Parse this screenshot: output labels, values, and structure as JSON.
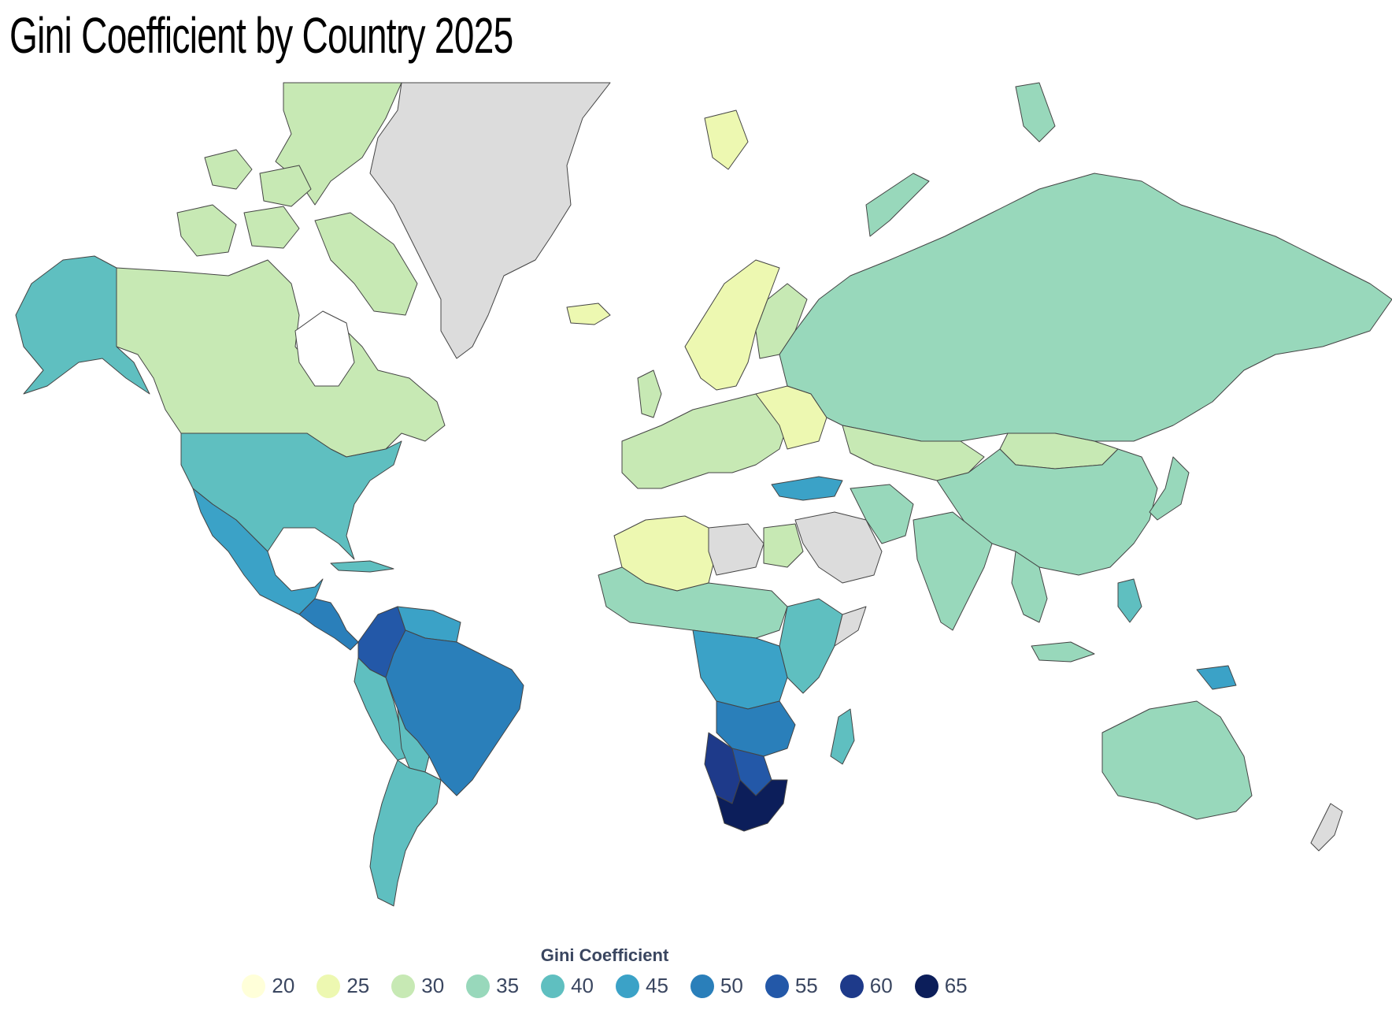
{
  "title": "Gini Coefficient by Country 2025",
  "legend": {
    "title": "Gini Coefficient",
    "items": [
      {
        "label": "20",
        "color": "#ffffd9"
      },
      {
        "label": "25",
        "color": "#edf8b1"
      },
      {
        "label": "30",
        "color": "#c7e9b4"
      },
      {
        "label": "35",
        "color": "#98d8bb"
      },
      {
        "label": "40",
        "color": "#5fbfc0"
      },
      {
        "label": "45",
        "color": "#3ba2c7"
      },
      {
        "label": "50",
        "color": "#2a7fba"
      },
      {
        "label": "55",
        "color": "#2358a8"
      },
      {
        "label": "60",
        "color": "#1e3a8a"
      },
      {
        "label": "65",
        "color": "#0c1e5a"
      }
    ]
  },
  "colors": {
    "no_data": "#dcdcdc",
    "border": "#444444",
    "inner_border": "#ffffff"
  }
}
